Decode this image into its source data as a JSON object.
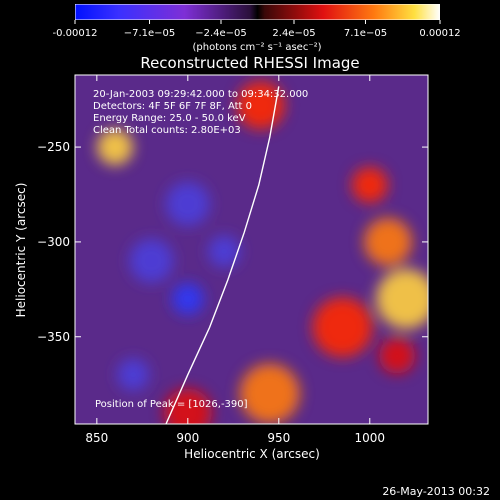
{
  "colorbar": {
    "tick_labels": [
      "-0.00012",
      "−7.1e−05",
      "−2.4e−05",
      "2.4e−05",
      "7.1e−05",
      "0.00012"
    ],
    "tick_values": [
      -0.00012,
      -7.1e-05,
      -2.4e-05,
      2.4e-05,
      7.1e-05,
      0.00012
    ],
    "range": [
      -0.00012,
      0.00012
    ],
    "units": "(photons cm⁻² s⁻¹ asec⁻²)"
  },
  "chart_data": {
    "type": "heatmap",
    "title": "Reconstructed RHESSI Image",
    "xlabel": "Heliocentric X (arcsec)",
    "ylabel": "Heliocentric Y (arcsec)",
    "xlim": [
      838,
      1032
    ],
    "ylim": [
      -396,
      -212
    ],
    "x_ticks": [
      850,
      900,
      950,
      1000
    ],
    "y_ticks": [
      -250,
      -300,
      -350
    ],
    "x_tick_labels": [
      "850",
      "900",
      "950",
      "1000"
    ],
    "y_tick_labels": [
      "−250",
      "−300",
      "−350"
    ],
    "annotations": [
      "20-Jan-2003 09:29:42.000 to 09:34:32.000",
      "Detectors: 4F 5F 6F 7F 8F, Att 0",
      "Energy Range: 25.0 - 50.0 keV",
      "Clean    Total counts: 2.80E+03"
    ],
    "peak_label": "Position of Peak = [1026,-390]",
    "peak": [
      1026,
      -390
    ],
    "limb_points": [
      [
        888,
        -396
      ],
      [
        900,
        -370
      ],
      [
        912,
        -345
      ],
      [
        922,
        -320
      ],
      [
        931,
        -295
      ],
      [
        939,
        -270
      ],
      [
        945,
        -245
      ],
      [
        950,
        -218
      ]
    ],
    "hot_regions": [
      [
        1000,
        -270
      ],
      [
        1010,
        -300
      ],
      [
        1020,
        -330
      ],
      [
        1015,
        -360
      ],
      [
        940,
        -228
      ],
      [
        945,
        -380
      ],
      [
        860,
        -250
      ],
      [
        900,
        -390
      ],
      [
        985,
        -345
      ]
    ],
    "cool_regions": [
      [
        900,
        -330
      ],
      [
        880,
        -310
      ],
      [
        920,
        -305
      ],
      [
        900,
        -280
      ],
      [
        870,
        -370
      ]
    ]
  },
  "footer": {
    "date": "26-May-2013 00:32"
  }
}
